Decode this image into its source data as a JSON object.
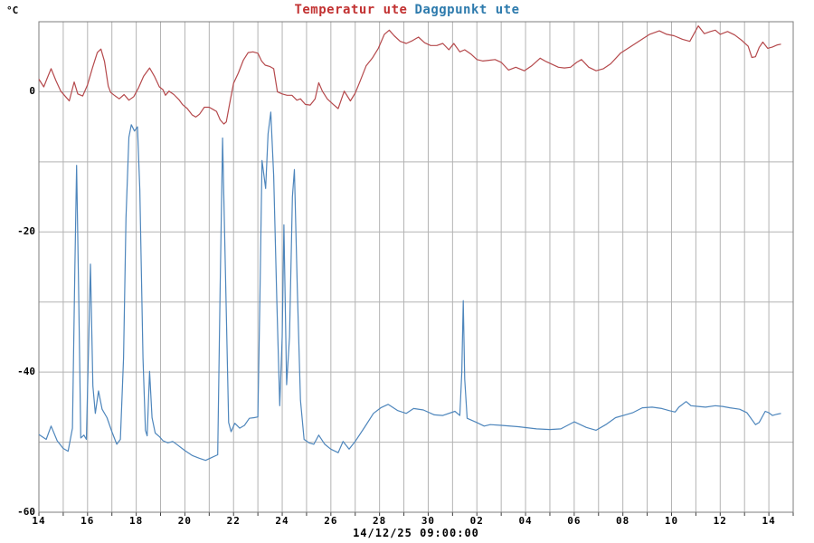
{
  "unit_label": "°C",
  "footer": {
    "timestamp": "14/12/25 09:00:00"
  },
  "chart_data": {
    "type": "line",
    "title": "Temperatur ute Daggpunkt ute",
    "title_segments": [
      {
        "label": "Temperatur ute",
        "color": "#c23232"
      },
      {
        "label": "Daggpunkt ute",
        "color": "#2e7bad"
      }
    ],
    "legend_position": "top-center",
    "grid": true,
    "x_axis": {
      "range_hours": [
        14,
        45
      ],
      "grid_every_hours": 1,
      "tick_every_hours": 2,
      "tick_labels": [
        "14",
        "16",
        "18",
        "20",
        "22",
        "24",
        "26",
        "28",
        "30",
        "02",
        "04",
        "06",
        "08",
        "10",
        "12",
        "14"
      ]
    },
    "y_axis": {
      "unit": "°C",
      "range": [
        -60,
        10
      ],
      "grid_every": 10,
      "tick_values": [
        0,
        -20,
        -40,
        -60
      ],
      "tick_labels": [
        "0",
        "-20",
        "-40",
        "-60"
      ]
    },
    "colors": {
      "grid": "#b3b3b3",
      "border": "#7d7d7d",
      "tick": "#3c3c3c"
    },
    "series": [
      {
        "name": "Temperatur ute",
        "color": "#b5494c",
        "x": [
          14.0,
          14.2,
          14.35,
          14.5,
          14.7,
          14.9,
          15.05,
          15.25,
          15.45,
          15.6,
          15.8,
          16.0,
          16.2,
          16.4,
          16.55,
          16.7,
          16.85,
          16.95,
          17.1,
          17.3,
          17.5,
          17.7,
          17.9,
          18.1,
          18.3,
          18.55,
          18.75,
          18.95,
          19.1,
          19.2,
          19.35,
          19.55,
          19.75,
          19.9,
          20.1,
          20.3,
          20.45,
          20.6,
          20.8,
          21.0,
          21.15,
          21.3,
          21.45,
          21.6,
          21.7,
          21.85,
          22.0,
          22.2,
          22.4,
          22.6,
          22.8,
          23.0,
          23.15,
          23.3,
          23.5,
          23.65,
          23.8,
          24.0,
          24.2,
          24.4,
          24.6,
          24.75,
          24.95,
          25.15,
          25.35,
          25.5,
          25.65,
          25.85,
          26.1,
          26.3,
          26.55,
          26.8,
          27.0,
          27.2,
          27.45,
          27.7,
          27.95,
          28.2,
          28.4,
          28.6,
          28.85,
          29.1,
          29.35,
          29.6,
          29.85,
          30.1,
          30.35,
          30.6,
          30.85,
          31.05,
          31.3,
          31.5,
          31.75,
          32.0,
          32.25,
          32.5,
          32.75,
          33.0,
          33.3,
          33.6,
          33.95,
          34.25,
          34.6,
          34.85,
          35.1,
          35.35,
          35.6,
          35.85,
          36.1,
          36.3,
          36.6,
          36.9,
          37.2,
          37.5,
          37.9,
          38.3,
          38.7,
          39.1,
          39.5,
          39.8,
          40.1,
          40.45,
          40.75,
          41.1,
          41.35,
          41.6,
          41.8,
          42.0,
          42.3,
          42.6,
          42.9,
          43.15,
          43.3,
          43.45,
          43.6,
          43.75,
          43.95,
          44.15,
          44.35,
          44.5
        ],
        "y": [
          1.8,
          0.7,
          2.0,
          3.3,
          1.6,
          0.1,
          -0.5,
          -1.3,
          1.4,
          -0.3,
          -0.6,
          1.0,
          3.4,
          5.6,
          6.1,
          4.3,
          0.8,
          -0.1,
          -0.5,
          -1.0,
          -0.4,
          -1.2,
          -0.7,
          0.6,
          2.2,
          3.4,
          2.2,
          0.7,
          0.3,
          -0.5,
          0.1,
          -0.4,
          -1.1,
          -1.8,
          -2.4,
          -3.3,
          -3.6,
          -3.2,
          -2.2,
          -2.2,
          -2.5,
          -2.8,
          -4.0,
          -4.6,
          -4.3,
          -1.5,
          1.2,
          2.7,
          4.5,
          5.6,
          5.7,
          5.5,
          4.4,
          3.8,
          3.6,
          3.3,
          0.0,
          -0.3,
          -0.5,
          -0.5,
          -1.2,
          -1.0,
          -1.8,
          -1.9,
          -1.0,
          1.3,
          0.1,
          -1.0,
          -1.8,
          -2.4,
          0.1,
          -1.3,
          -0.2,
          1.5,
          3.7,
          4.8,
          6.2,
          8.2,
          8.8,
          8.0,
          7.2,
          6.9,
          7.3,
          7.8,
          7.0,
          6.6,
          6.6,
          6.9,
          6.0,
          6.9,
          5.7,
          6.0,
          5.4,
          4.6,
          4.4,
          4.5,
          4.6,
          4.2,
          3.1,
          3.5,
          3.0,
          3.7,
          4.8,
          4.3,
          3.9,
          3.5,
          3.4,
          3.5,
          4.2,
          4.6,
          3.5,
          3.0,
          3.3,
          4.0,
          5.5,
          6.4,
          7.3,
          8.2,
          8.7,
          8.2,
          8.0,
          7.5,
          7.2,
          9.4,
          8.3,
          8.6,
          8.8,
          8.2,
          8.6,
          8.1,
          7.3,
          6.5,
          4.9,
          5.0,
          6.3,
          7.1,
          6.2,
          6.4,
          6.7,
          6.8
        ]
      },
      {
        "name": "Daggpunkt ute",
        "color": "#4e86bc",
        "x": [
          14.0,
          14.3,
          14.5,
          14.75,
          15.0,
          15.2,
          15.38,
          15.48,
          15.55,
          15.63,
          15.72,
          15.85,
          15.95,
          16.05,
          16.12,
          16.22,
          16.32,
          16.45,
          16.6,
          16.8,
          17.0,
          17.2,
          17.35,
          17.48,
          17.58,
          17.7,
          17.8,
          17.93,
          18.05,
          18.15,
          18.28,
          18.38,
          18.45,
          18.55,
          18.65,
          18.78,
          18.95,
          19.1,
          19.3,
          19.5,
          19.7,
          20.0,
          20.3,
          20.6,
          20.85,
          21.1,
          21.35,
          21.45,
          21.55,
          21.67,
          21.8,
          21.9,
          22.05,
          22.25,
          22.45,
          22.65,
          22.85,
          23.0,
          23.08,
          23.17,
          23.32,
          23.42,
          23.53,
          23.65,
          23.78,
          23.9,
          24.0,
          24.07,
          24.18,
          24.3,
          24.42,
          24.5,
          24.62,
          24.75,
          24.9,
          25.1,
          25.3,
          25.5,
          25.75,
          26.0,
          26.3,
          26.5,
          26.75,
          27.0,
          27.4,
          27.75,
          28.05,
          28.35,
          28.75,
          29.1,
          29.4,
          29.8,
          30.25,
          30.6,
          31.1,
          31.3,
          31.38,
          31.44,
          31.5,
          31.6,
          32.0,
          32.3,
          32.55,
          33.0,
          33.7,
          34.45,
          35.0,
          35.45,
          36.0,
          36.5,
          36.9,
          37.3,
          37.7,
          38.1,
          38.4,
          38.8,
          39.2,
          39.6,
          39.9,
          40.15,
          40.3,
          40.6,
          40.8,
          41.1,
          41.4,
          41.8,
          42.1,
          42.4,
          42.8,
          43.1,
          43.45,
          43.6,
          43.85,
          44.0,
          44.15,
          44.35,
          44.5
        ],
        "y": [
          -48.9,
          -49.6,
          -47.7,
          -49.8,
          -50.9,
          -51.3,
          -48.0,
          -25.0,
          -10.5,
          -28.0,
          -49.4,
          -49.0,
          -49.6,
          -35.0,
          -24.6,
          -42.0,
          -45.9,
          -42.7,
          -45.3,
          -46.5,
          -48.5,
          -50.3,
          -49.6,
          -38.0,
          -18.0,
          -6.5,
          -4.7,
          -5.6,
          -5.0,
          -14.0,
          -38.0,
          -48.3,
          -49.1,
          -39.9,
          -46.5,
          -48.7,
          -49.2,
          -49.8,
          -50.1,
          -49.9,
          -50.4,
          -51.2,
          -51.9,
          -52.3,
          -52.6,
          -52.2,
          -51.8,
          -28.0,
          -6.6,
          -26.0,
          -47.2,
          -48.5,
          -47.3,
          -48.0,
          -47.6,
          -46.6,
          -46.5,
          -46.4,
          -30.0,
          -9.8,
          -13.8,
          -6.0,
          -2.9,
          -12.0,
          -30.0,
          -44.8,
          -35.0,
          -19.0,
          -41.8,
          -35.0,
          -15.0,
          -11.1,
          -28.0,
          -44.0,
          -49.6,
          -50.1,
          -50.3,
          -49.0,
          -50.3,
          -51.0,
          -51.5,
          -49.9,
          -51.0,
          -49.9,
          -47.8,
          -45.9,
          -45.1,
          -44.6,
          -45.5,
          -45.9,
          -45.2,
          -45.4,
          -46.1,
          -46.2,
          -45.6,
          -46.2,
          -40.0,
          -29.8,
          -41.0,
          -46.6,
          -47.2,
          -47.7,
          -47.5,
          -47.6,
          -47.8,
          -48.1,
          -48.2,
          -48.1,
          -47.1,
          -47.9,
          -48.3,
          -47.5,
          -46.5,
          -46.1,
          -45.8,
          -45.1,
          -45.0,
          -45.2,
          -45.5,
          -45.7,
          -45.0,
          -44.2,
          -44.8,
          -44.9,
          -45.0,
          -44.8,
          -44.9,
          -45.1,
          -45.3,
          -45.8,
          -47.5,
          -47.2,
          -45.6,
          -45.8,
          -46.2,
          -46.0,
          -45.9
        ]
      }
    ]
  }
}
